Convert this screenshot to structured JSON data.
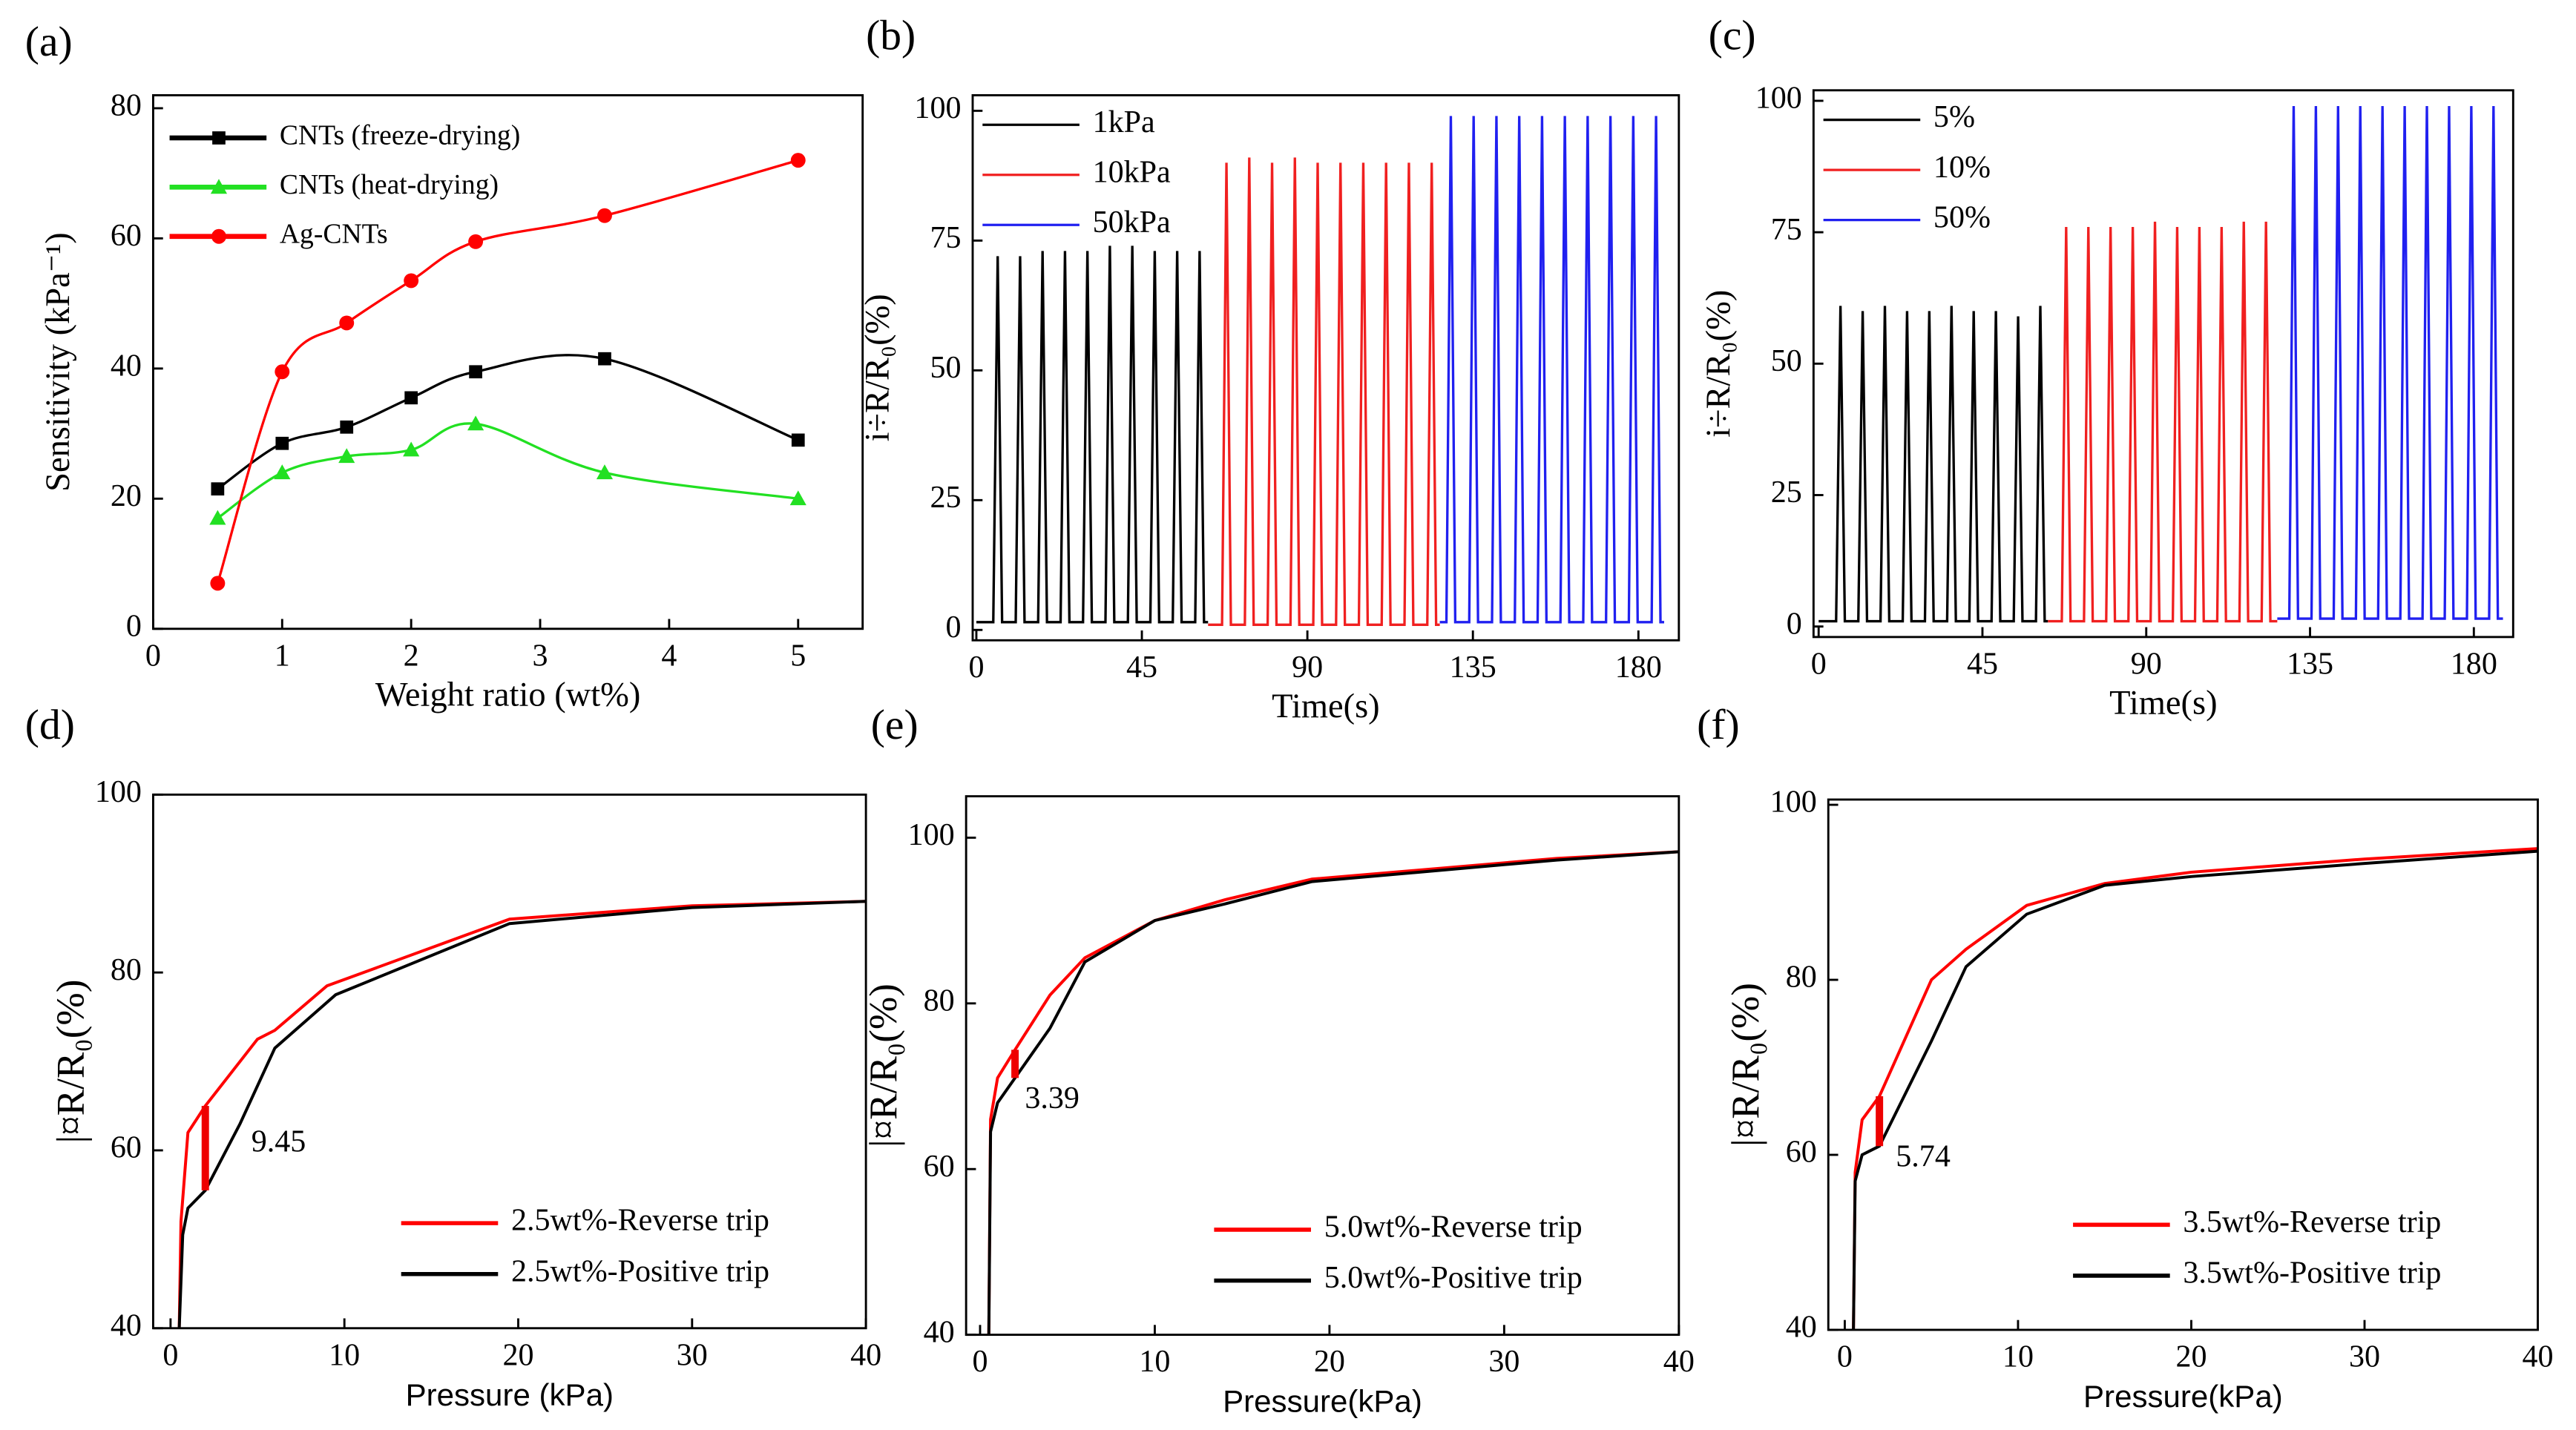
{
  "chart_data": [
    {
      "type": "line",
      "panel": "(a)",
      "smooth": true,
      "legend": "upper left",
      "xlabel": "Weight ratio (wt%)",
      "ylabel": "Sensitivity (kPa⁻¹)",
      "x": [
        0.5,
        1,
        1.5,
        2,
        2.5,
        3.5,
        5
      ],
      "xlim": [
        0,
        5.5
      ],
      "xticks": [
        0,
        1,
        2,
        3,
        4,
        5
      ],
      "ylim": [
        0,
        82
      ],
      "yticks": [
        0,
        20,
        40,
        60,
        80
      ],
      "series": [
        {
          "name": "CNTs (freeze-drying)",
          "color": "#000000",
          "marker": "square",
          "values": [
            21.5,
            28.5,
            31,
            35.5,
            39.5,
            41.5,
            29
          ]
        },
        {
          "name": "CNTs (heat-drying)",
          "color": "#22e022",
          "marker": "triangle",
          "values": [
            17,
            24,
            26.5,
            27.5,
            31.5,
            24,
            20
          ]
        },
        {
          "name": "Ag-CNTs",
          "color": "#ff0000",
          "marker": "circle",
          "values": [
            7,
            39.5,
            47,
            53.5,
            59.5,
            63.5,
            72
          ]
        }
      ]
    },
    {
      "type": "line",
      "panel": "(b)",
      "legend": "upper left",
      "xlabel": "Time(s)",
      "ylabel": "i÷R/R₀(%)",
      "xlim": [
        -1,
        191
      ],
      "xticks": [
        0,
        45,
        90,
        135,
        180
      ],
      "ylim": [
        -2,
        103
      ],
      "yticks": [
        0,
        25,
        50,
        75,
        100
      ],
      "series": [
        {
          "name": "1kPa",
          "color": "#000000",
          "x": [
            0,
            4.6,
            5.8,
            7.0,
            10.7,
            11.9,
            13.1,
            16.8,
            18.0,
            19.2,
            22.9,
            24.1,
            25.3,
            29.0,
            30.2,
            31.4,
            35.1,
            36.3,
            37.5,
            41.2,
            42.4,
            43.6,
            47.3,
            48.5,
            49.7,
            53.4,
            54.6,
            55.8,
            59.5,
            60.7,
            61.9,
            63
          ],
          "values": [
            1.5,
            1.5,
            72,
            1.5,
            1.5,
            72,
            1.5,
            1.5,
            73,
            1.5,
            1.5,
            73,
            1.5,
            1.5,
            73,
            1.5,
            1.5,
            74,
            1.5,
            1.5,
            74,
            1.5,
            1.5,
            73,
            1.5,
            1.5,
            73,
            1.5,
            1.5,
            73,
            1.5,
            1.5
          ]
        },
        {
          "name": "10kPa",
          "color": "#f02020",
          "x": [
            63,
            66.8,
            68,
            69.2,
            73,
            74.2,
            75.4,
            79.2,
            80.4,
            81.6,
            85.4,
            86.6,
            87.8,
            91.6,
            92.8,
            94,
            97.8,
            99,
            100.2,
            104,
            105.2,
            106.4,
            110.2,
            111.4,
            112.6,
            116.4,
            117.6,
            118.8,
            122.6,
            123.8,
            125,
            126
          ],
          "values": [
            1,
            1,
            90,
            1,
            1,
            91,
            1,
            1,
            90,
            1,
            1,
            91,
            1,
            1,
            90,
            1,
            1,
            90,
            1,
            1,
            90,
            1,
            1,
            90,
            1,
            1,
            90,
            1,
            1,
            90,
            1,
            1
          ]
        },
        {
          "name": "50kPa",
          "color": "#2020f0",
          "x": [
            126,
            127.8,
            129,
            130.2,
            134,
            135.2,
            136.4,
            140.2,
            141.4,
            142.6,
            146.4,
            147.6,
            148.8,
            152.6,
            153.8,
            155,
            158.8,
            160,
            161.2,
            165,
            166.2,
            167.4,
            171.2,
            172.4,
            173.6,
            177.4,
            178.6,
            179.8,
            183.6,
            184.8,
            186,
            187
          ],
          "values": [
            1.5,
            1.5,
            99,
            1.5,
            1.5,
            99,
            1.5,
            1.5,
            99,
            1.5,
            1.5,
            99,
            1.5,
            1.5,
            99,
            1.5,
            1.5,
            99,
            1.5,
            1.5,
            99,
            1.5,
            1.5,
            99,
            1.5,
            1.5,
            99,
            1.5,
            1.5,
            99,
            1.5,
            1.5
          ]
        }
      ]
    },
    {
      "type": "line",
      "panel": "(c)",
      "legend": "upper left",
      "xlabel": "Time(s)",
      "ylabel": "i÷R/R₀(%)",
      "xlim": [
        -1.4,
        190.8
      ],
      "xticks": [
        0,
        45,
        90,
        135,
        180
      ],
      "ylim": [
        -2,
        102
      ],
      "yticks": [
        0,
        25,
        50,
        75,
        100
      ],
      "series": [
        {
          "name": "5%",
          "color": "#000000",
          "x": [
            0,
            4.8,
            6,
            7.2,
            10.9,
            12.1,
            13.3,
            17,
            18.2,
            19.4,
            23.1,
            24.3,
            25.5,
            29.2,
            30.4,
            31.6,
            35.3,
            36.5,
            37.7,
            41.4,
            42.6,
            43.8,
            47.5,
            48.7,
            49.9,
            53.6,
            54.8,
            56,
            59.7,
            60.9,
            62.1,
            63
          ],
          "values": [
            1,
            1,
            61,
            1,
            1,
            60,
            1,
            1,
            61,
            1,
            1,
            60,
            1,
            1,
            60,
            1,
            1,
            61,
            1,
            1,
            60,
            1,
            1,
            60,
            1,
            1,
            59,
            1,
            1,
            61,
            1,
            1
          ]
        },
        {
          "name": "10%",
          "color": "#f02020",
          "x": [
            63,
            66.8,
            68,
            69.2,
            72.9,
            74.1,
            75.3,
            79,
            80.2,
            81.4,
            85.1,
            86.3,
            87.5,
            91.2,
            92.4,
            93.6,
            97.3,
            98.5,
            99.7,
            103.4,
            104.6,
            105.8,
            109.5,
            110.7,
            111.9,
            115.6,
            116.8,
            118,
            121.7,
            122.9,
            124.1,
            126
          ],
          "values": [
            1,
            1,
            76,
            1,
            1,
            76,
            1,
            1,
            76,
            1,
            1,
            76,
            1,
            1,
            77,
            1,
            1,
            76,
            1,
            1,
            76,
            1,
            1,
            76,
            1,
            1,
            77,
            1,
            1,
            77,
            1,
            1
          ]
        },
        {
          "name": "50%",
          "color": "#2020f0",
          "x": [
            126,
            129.3,
            130.5,
            131.7,
            135.4,
            136.6,
            137.8,
            141.5,
            142.7,
            143.9,
            147.6,
            148.8,
            150,
            153.7,
            154.9,
            156.1,
            159.8,
            161,
            162.2,
            165.9,
            167.1,
            168.3,
            172,
            173.2,
            174.4,
            178.1,
            179.3,
            180.5,
            184.2,
            185.4,
            186.6,
            188
          ],
          "values": [
            1.5,
            1.5,
            99,
            1.5,
            1.5,
            99,
            1.5,
            1.5,
            99,
            1.5,
            1.5,
            99,
            1.5,
            1.5,
            99,
            1.5,
            1.5,
            99,
            1.5,
            1.5,
            99,
            1.5,
            1.5,
            99,
            1.5,
            1.5,
            99,
            1.5,
            1.5,
            99,
            1.5,
            1.5
          ]
        }
      ]
    },
    {
      "type": "line",
      "panel": "(d)",
      "legend": "lower right",
      "xlabel": "Pressure (kPa)",
      "ylabel": "|¤R/R₀(%)",
      "annotation": "9.45",
      "xlim": [
        -1,
        40
      ],
      "xticks": [
        0,
        10,
        20,
        30,
        40
      ],
      "ylim": [
        40,
        100
      ],
      "yticks": [
        40,
        60,
        80,
        100
      ],
      "series": [
        {
          "name": "2.5wt%-Reverse trip",
          "color": "#ff0000",
          "x": [
            0.5,
            0.6,
            1,
            2,
            5,
            6,
            9,
            19.5,
            30,
            40
          ],
          "values": [
            40,
            52,
            62,
            65,
            72.5,
            73.5,
            78.5,
            86,
            87.5,
            88
          ]
        },
        {
          "name": "2.5wt%-Positive trip",
          "color": "#000000",
          "x": [
            0.5,
            0.7,
            1,
            2,
            4,
            6,
            9.5,
            19.5,
            30,
            40
          ],
          "values": [
            40,
            50.5,
            53.5,
            55.5,
            63,
            71.5,
            77.5,
            85.5,
            87.3,
            88
          ]
        }
      ]
    },
    {
      "type": "line",
      "panel": "(e)",
      "legend": "lower right",
      "xlabel": "Pressure(kPa)",
      "ylabel": "|¤R/R₀(%)",
      "annotation": "3.39",
      "xlim": [
        -0.8,
        40
      ],
      "xticks": [
        0,
        10,
        20,
        30,
        40
      ],
      "ylim": [
        40,
        105
      ],
      "yticks": [
        40,
        60,
        80,
        100
      ],
      "series": [
        {
          "name": "5.0wt%-Reverse trip",
          "color": "#ff0000",
          "x": [
            0.5,
            0.6,
            1,
            2,
            4,
            6,
            10,
            14,
            19,
            33,
            40
          ],
          "values": [
            40,
            66,
            71,
            74.4,
            81,
            85.5,
            90,
            92.5,
            95,
            97.5,
            98.3
          ]
        },
        {
          "name": "5.0wt%-Positive trip",
          "color": "#000000",
          "x": [
            0.5,
            0.6,
            1,
            2,
            4,
            6,
            10,
            14,
            19,
            33,
            40
          ],
          "values": [
            40,
            64.5,
            68,
            71,
            77,
            85,
            90,
            92,
            94.7,
            97.3,
            98.3
          ]
        }
      ]
    },
    {
      "type": "line",
      "panel": "(f)",
      "legend": "lower right",
      "xlabel": "Pressure(kPa)",
      "ylabel": "|¤R/R₀(%)",
      "annotation": "5.74",
      "xlim": [
        -0.95,
        40
      ],
      "xticks": [
        0,
        10,
        20,
        30,
        40
      ],
      "ylim": [
        40,
        100.6
      ],
      "yticks": [
        40,
        60,
        80,
        100
      ],
      "series": [
        {
          "name": "3.5wt%-Reverse trip",
          "color": "#ff0000",
          "x": [
            0.5,
            0.6,
            1,
            2,
            5,
            7,
            10.5,
            15,
            20,
            30,
            40
          ],
          "values": [
            40,
            58,
            64,
            66.7,
            80,
            83.5,
            88.5,
            91,
            92.3,
            93.8,
            95
          ]
        },
        {
          "name": "3.5wt%-Positive trip",
          "color": "#000000",
          "x": [
            0.5,
            0.6,
            1,
            2,
            5,
            7,
            10.5,
            15,
            20,
            30,
            40
          ],
          "values": [
            40,
            57,
            60,
            61,
            73,
            81.5,
            87.5,
            90.8,
            91.8,
            93.3,
            94.7
          ]
        }
      ]
    }
  ]
}
